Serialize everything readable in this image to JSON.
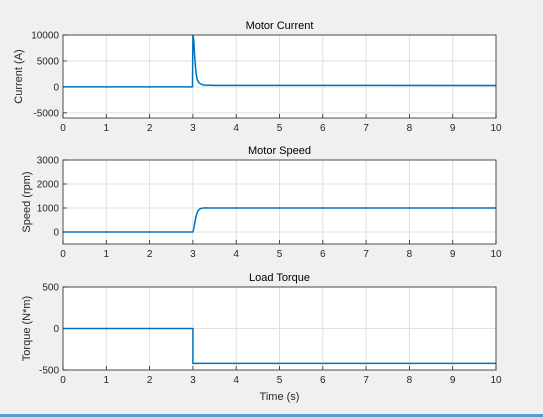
{
  "chart_data": [
    {
      "type": "line",
      "title": "Motor Current",
      "xlabel": "",
      "ylabel": "Current (A)",
      "xlim": [
        0,
        10
      ],
      "ylim": [
        -6000,
        10000
      ],
      "xticks": [
        "0",
        "1",
        "2",
        "3",
        "4",
        "5",
        "6",
        "7",
        "8",
        "9",
        "10"
      ],
      "yticks": [
        {
          "value": 10000,
          "label": "10000"
        },
        {
          "value": 5000,
          "label": "5000"
        },
        {
          "value": 0,
          "label": "0"
        },
        {
          "value": -5000,
          "label": "-5000"
        }
      ],
      "grid": true,
      "color": "#0072bd",
      "x": [
        0,
        2.99,
        3.0,
        3.02,
        3.04,
        3.06,
        3.08,
        3.1,
        3.13,
        3.17,
        3.22,
        3.3,
        3.5,
        4,
        10
      ],
      "y": [
        0,
        0,
        10000,
        9000,
        6000,
        3800,
        2300,
        1400,
        900,
        600,
        420,
        330,
        300,
        290,
        270
      ]
    },
    {
      "type": "line",
      "title": "Motor Speed",
      "xlabel": "",
      "ylabel": "Speed (rpm)",
      "xlim": [
        0,
        10
      ],
      "ylim": [
        -500,
        3000
      ],
      "xticks": [
        "0",
        "1",
        "2",
        "3",
        "4",
        "5",
        "6",
        "7",
        "8",
        "9",
        "10"
      ],
      "yticks": [
        {
          "value": 3000,
          "label": "3000"
        },
        {
          "value": 2000,
          "label": "2000"
        },
        {
          "value": 1000,
          "label": "1000"
        },
        {
          "value": 0,
          "label": "0"
        }
      ],
      "grid": true,
      "color": "#0072bd",
      "x": [
        0,
        3.0,
        3.02,
        3.05,
        3.08,
        3.11,
        3.15,
        3.2,
        3.28,
        3.4,
        10
      ],
      "y": [
        0,
        0,
        150,
        450,
        700,
        860,
        950,
        990,
        1005,
        1000,
        1000
      ]
    },
    {
      "type": "line",
      "title": "Load Torque",
      "xlabel": "Time (s)",
      "ylabel": "Torque (N*m)",
      "xlim": [
        0,
        10
      ],
      "ylim": [
        -500,
        500
      ],
      "xticks": [
        "0",
        "1",
        "2",
        "3",
        "4",
        "5",
        "6",
        "7",
        "8",
        "9",
        "10"
      ],
      "yticks": [
        {
          "value": 500,
          "label": "500"
        },
        {
          "value": 0,
          "label": "0"
        },
        {
          "value": -500,
          "label": "-500"
        }
      ],
      "grid": true,
      "color": "#0072bd",
      "x": [
        0,
        3.0,
        3.0,
        10
      ],
      "y": [
        0,
        0,
        -420,
        -420
      ]
    }
  ]
}
